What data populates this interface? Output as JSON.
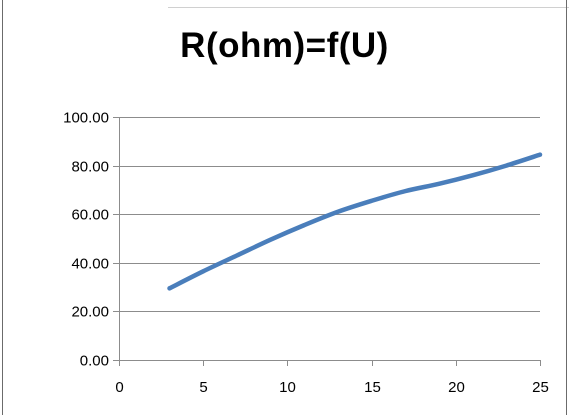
{
  "chart_data": {
    "type": "line",
    "title": "R(ohm)=f(U)",
    "xlabel": "",
    "ylabel": "",
    "xlim": [
      0,
      25
    ],
    "ylim": [
      0,
      100
    ],
    "x_ticks": [
      "0",
      "5",
      "10",
      "15",
      "20",
      "25"
    ],
    "y_ticks": [
      "0.00",
      "20.00",
      "40.00",
      "60.00",
      "80.00",
      "100.00"
    ],
    "grid": "horizontal",
    "legend": "none",
    "series": [
      {
        "color": "#4a7ebb",
        "x": [
          3,
          5,
          7,
          9,
          11,
          13,
          15,
          17,
          19,
          21,
          23,
          25
        ],
        "y": [
          29.5,
          36.5,
          43.0,
          49.5,
          55.5,
          61.0,
          65.5,
          69.5,
          72.5,
          76.0,
          80.0,
          84.5
        ]
      }
    ]
  }
}
